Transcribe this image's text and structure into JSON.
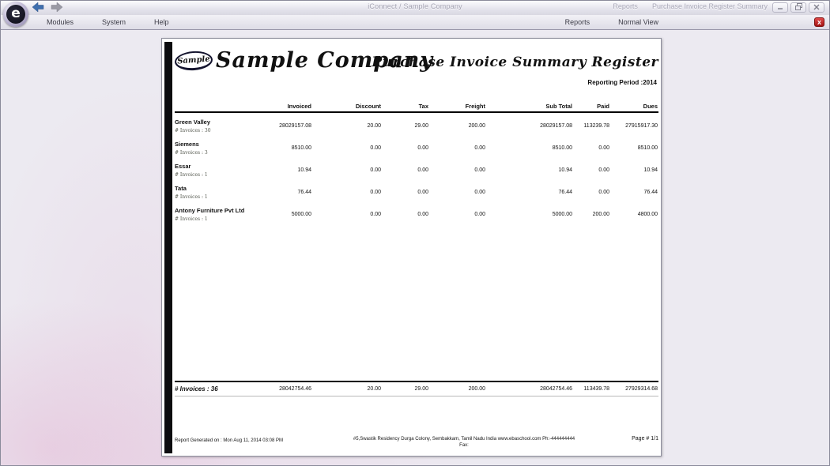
{
  "window": {
    "title": "iConnect / Sample Company",
    "breadcrumb_section": "Reports",
    "breadcrumb_page": "Purchase Invoice Register Summary",
    "buttons": {
      "minimize": "minimize",
      "restore": "restore",
      "close": "close"
    },
    "close_report_label": "x"
  },
  "menubar": {
    "left_items": [
      {
        "label": "Modules"
      },
      {
        "label": "System"
      },
      {
        "label": "Help"
      }
    ],
    "right_items": [
      {
        "label": "Reports"
      },
      {
        "label": "Normal View"
      }
    ]
  },
  "report": {
    "logo_text": "Sample",
    "company_name": "Sample Company",
    "title": "Purchase Invoice Summary Register",
    "period": "Reporting Period :2014",
    "columns": [
      "Invoiced",
      "Discount",
      "Tax",
      "Freight",
      "Sub Total",
      "Paid",
      "Dues"
    ],
    "rows": [
      {
        "name": "Green Valley",
        "invoices": "# Invoices : 30",
        "values": [
          "28029157.08",
          "20.00",
          "29.00",
          "200.00",
          "28029157.08",
          "113239.78",
          "27915917.30"
        ]
      },
      {
        "name": "Siemens",
        "invoices": "# Invoices : 3",
        "values": [
          "8510.00",
          "0.00",
          "0.00",
          "0.00",
          "8510.00",
          "0.00",
          "8510.00"
        ]
      },
      {
        "name": "Essar",
        "invoices": "# Invoices : 1",
        "values": [
          "10.94",
          "0.00",
          "0.00",
          "0.00",
          "10.94",
          "0.00",
          "10.94"
        ]
      },
      {
        "name": "Tata",
        "invoices": "# Invoices : 1",
        "values": [
          "76.44",
          "0.00",
          "0.00",
          "0.00",
          "76.44",
          "0.00",
          "76.44"
        ]
      },
      {
        "name": "Antony Furniture Pvt Ltd",
        "invoices": "# Invoices : 1",
        "values": [
          "5000.00",
          "0.00",
          "0.00",
          "0.00",
          "5000.00",
          "200.00",
          "4800.00"
        ]
      }
    ],
    "totals": {
      "label": "# Invoices : 36",
      "values": [
        "28042754.46",
        "20.00",
        "29.00",
        "200.00",
        "28042754.46",
        "113439.78",
        "27929314.68"
      ]
    },
    "footer": {
      "generated": "Report Generated on : Mon  Aug 11, 2014 03:08 PM",
      "address": "#5,Swastik Residency Durga Colony,  Sembakkam,  Tamil Nadu India www.ebaschool.com Ph:-444444444",
      "fax": "Fax:",
      "page": "Page #  1/1"
    }
  },
  "colors": {
    "accent_red": "#b51d1d",
    "nav_back_blue": "#3f6fae",
    "nav_forward_gray": "#9a9aa4"
  }
}
